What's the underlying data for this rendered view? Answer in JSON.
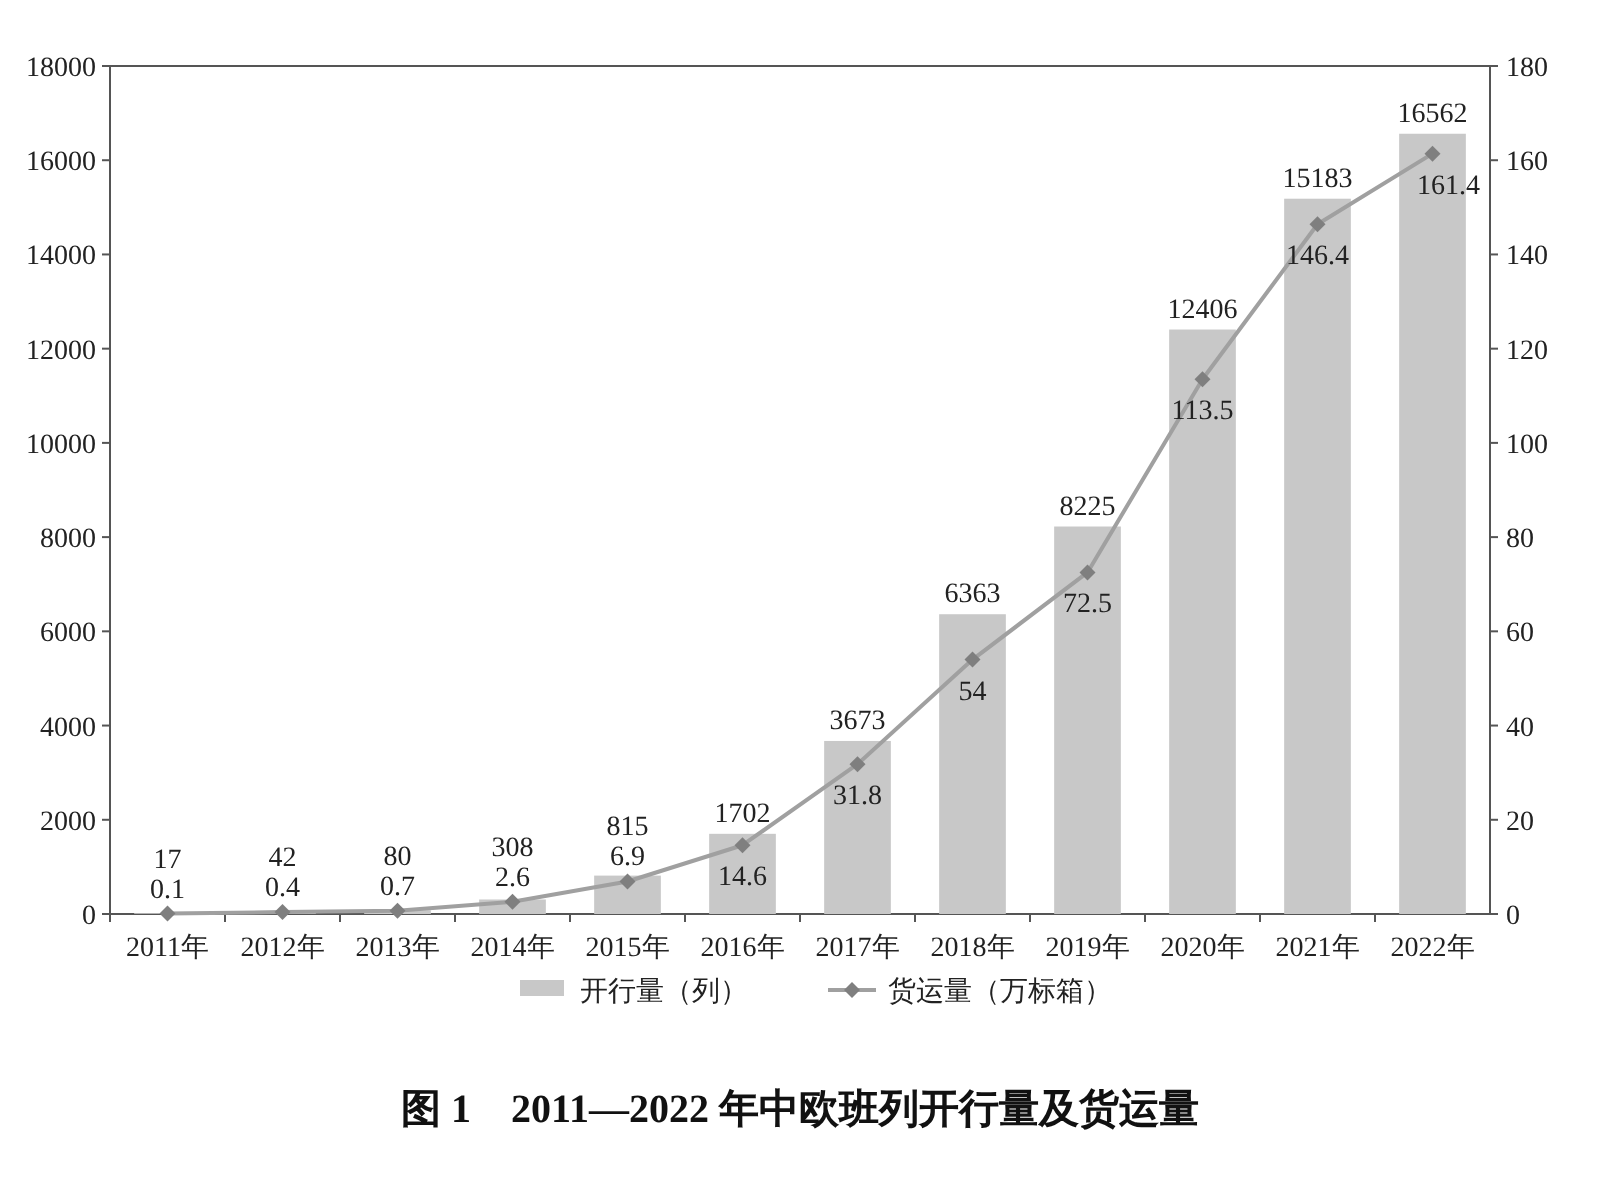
{
  "chart_data": {
    "type": "bar",
    "title": "图 1　2011—2022 年中欧班列开行量及货运量",
    "categories": [
      "2011年",
      "2012年",
      "2013年",
      "2014年",
      "2015年",
      "2016年",
      "2017年",
      "2018年",
      "2019年",
      "2020年",
      "2021年",
      "2022年"
    ],
    "series": [
      {
        "name": "开行量（列）",
        "color": "#c8c8c8",
        "values": [
          17,
          42,
          80,
          308,
          815,
          1702,
          3673,
          6363,
          8225,
          12406,
          15183,
          16562
        ]
      },
      {
        "name": "货运量（万标箱）",
        "type": "line",
        "axis": "y2",
        "color": "#a0a0a0",
        "values": [
          0.1,
          0.4,
          0.7,
          2.6,
          6.9,
          14.6,
          31.8,
          54,
          72.5,
          113.5,
          146.4,
          161.4
        ]
      }
    ],
    "ylim": [
      0,
      18000
    ],
    "yticks": [
      0,
      2000,
      4000,
      6000,
      8000,
      10000,
      12000,
      14000,
      16000,
      18000
    ],
    "y2lim": [
      0,
      180
    ],
    "y2ticks": [
      0,
      20,
      40,
      60,
      80,
      100,
      120,
      140,
      160,
      180
    ],
    "data_labels": true,
    "legend": "bottom",
    "marker": "diamond"
  }
}
